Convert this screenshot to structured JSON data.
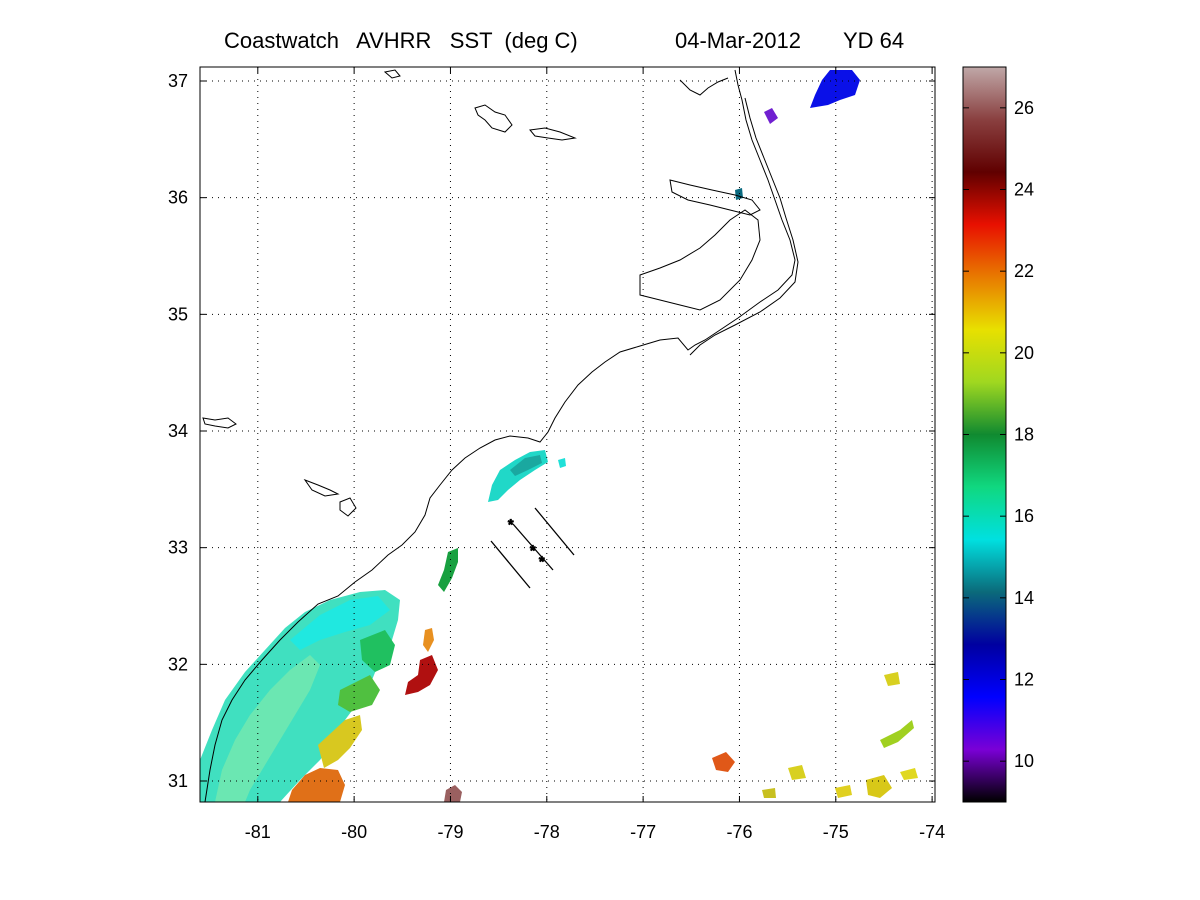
{
  "title": {
    "text": "Coastwatch   AVHRR   SST  (deg C)",
    "date": "04-Mar-2012",
    "yearday": "YD 64"
  },
  "map": {
    "lon_range": [
      -81.6,
      -73.97
    ],
    "lat_range": [
      30.82,
      37.12
    ],
    "lon_ticks": [
      -81,
      -80,
      -79,
      -78,
      -77,
      -76,
      -75,
      -74
    ],
    "lat_ticks": [
      31,
      32,
      33,
      34,
      35,
      36,
      37
    ],
    "grid": "dotted"
  },
  "colorbar": {
    "range": [
      9,
      27
    ],
    "ticks": [
      10,
      12,
      14,
      16,
      18,
      20,
      22,
      24,
      26
    ],
    "colormap": "jet-like",
    "stops": [
      "#000000",
      "#7a00d6",
      "#0000ff",
      "#0000a0",
      "#0b6a7a",
      "#00e0e0",
      "#10d880",
      "#108a30",
      "#a0d820",
      "#e8e000",
      "#e87a00",
      "#e81000",
      "#600000",
      "#8a4040",
      "#c0a8a8"
    ]
  },
  "colors": {
    "coast": "#000000",
    "grid": "#000000",
    "frame": "#000000"
  }
}
